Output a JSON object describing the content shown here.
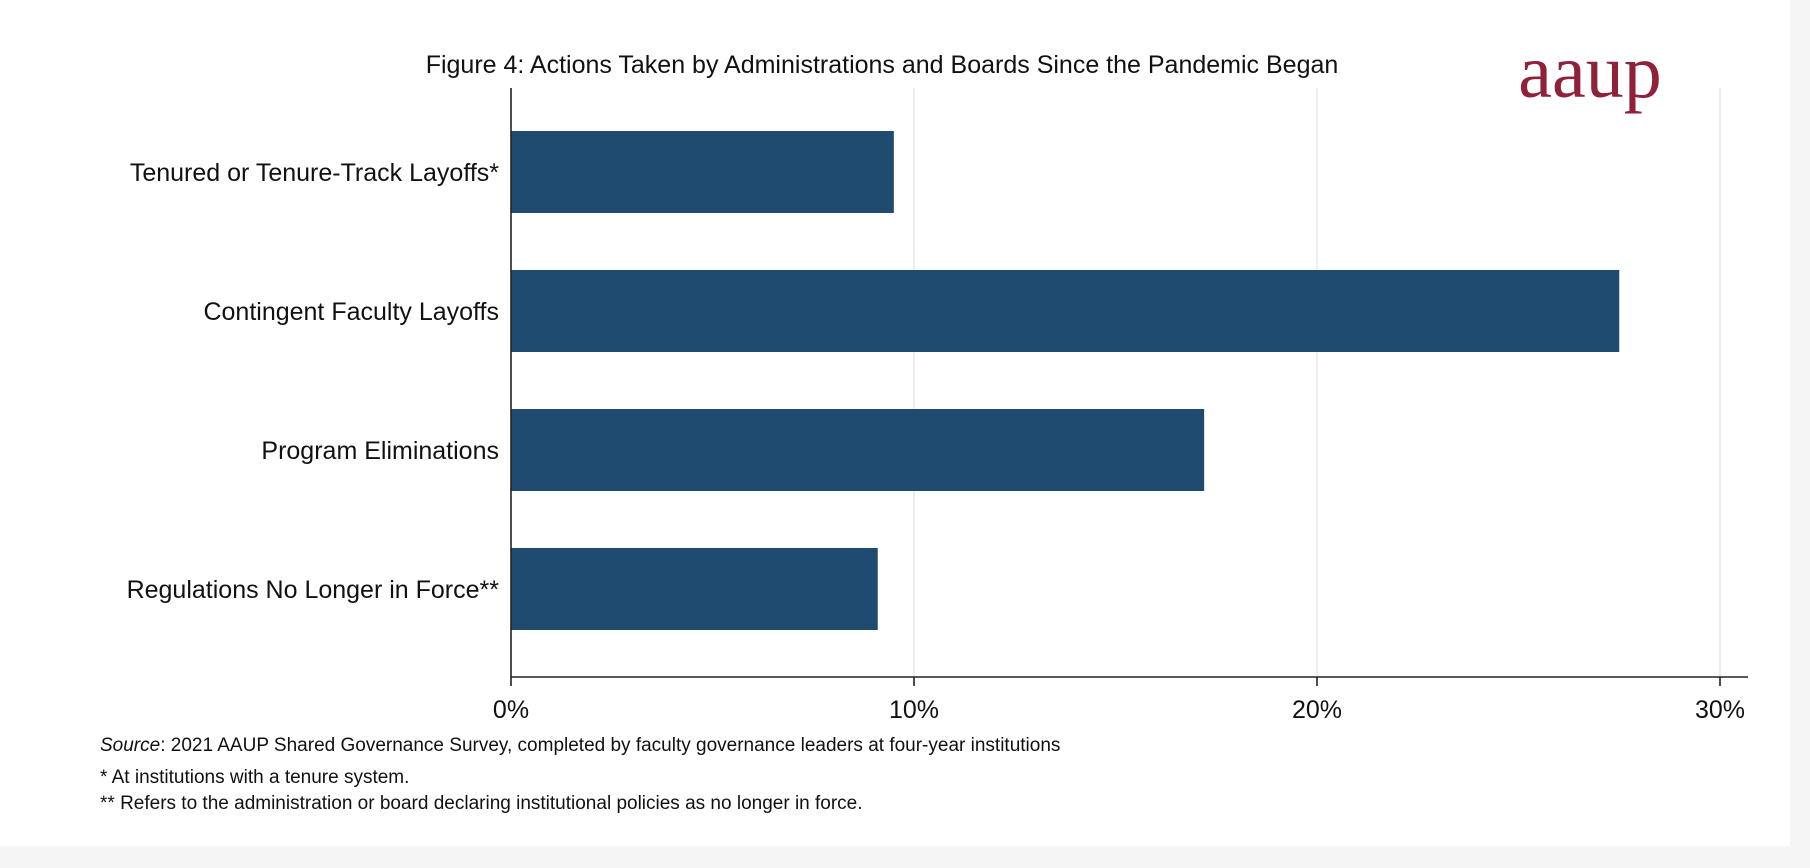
{
  "chart_data": {
    "type": "bar",
    "orientation": "horizontal",
    "title": "Figure 4: Actions Taken by Administrations and Boards Since the Pandemic Began",
    "categories": [
      "Tenured or Tenure-Track Layoffs*",
      "Contingent Faculty Layoffs",
      "Program Eliminations",
      "Regulations No Longer in Force**"
    ],
    "values": [
      9.5,
      27.5,
      17.2,
      9.1
    ],
    "unit": "%",
    "xlim": [
      0,
      30
    ],
    "ticks": [
      0,
      10,
      20,
      30
    ],
    "tick_labels": [
      "0%",
      "10%",
      "20%",
      "30%"
    ],
    "xlabel": "",
    "ylabel": "",
    "grid": "vertical",
    "bar_color": "#1f4b70"
  },
  "logo": {
    "text": "aaup",
    "color": "#8f2238"
  },
  "notes": {
    "source_label": "Source",
    "source_text": ": 2021 AAUP Shared Governance Survey, completed by faculty governance leaders at four-year institutions",
    "footnote_1": "* At institutions with a tenure system.",
    "footnote_2": "** Refers to the administration or board declaring institutional policies as no longer in force."
  }
}
